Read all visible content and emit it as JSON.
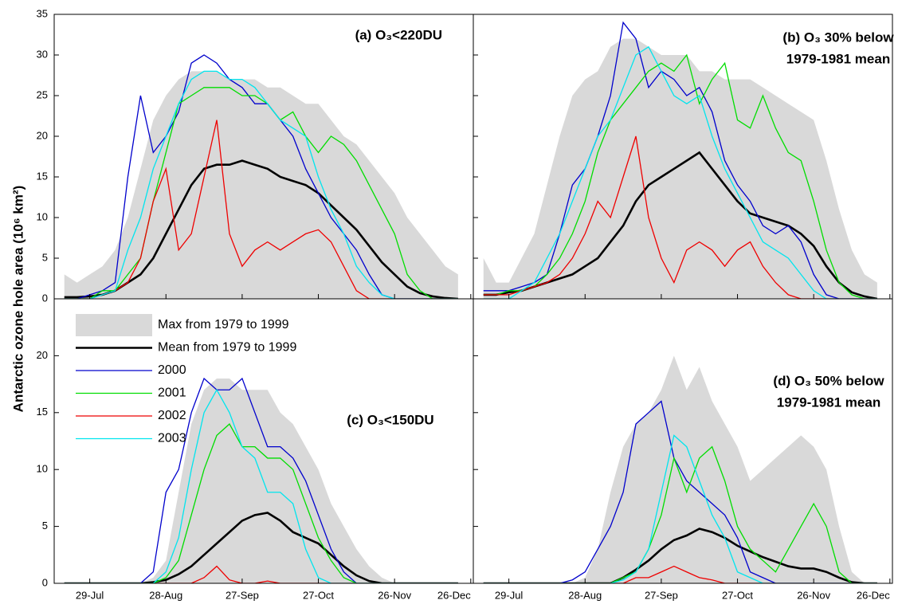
{
  "chart_data": {
    "type": "line",
    "y_label": "Antarctic ozone hole area (10⁶ km²)",
    "x": [
      200,
      205,
      210,
      215,
      220,
      225,
      230,
      235,
      240,
      245,
      250,
      255,
      260,
      265,
      270,
      275,
      280,
      285,
      290,
      295,
      300,
      305,
      310,
      315,
      320,
      325,
      330,
      335,
      340,
      345,
      350,
      355
    ],
    "xlim": [
      196,
      361
    ],
    "xticks": [
      {
        "value": 210,
        "label": "29-Jul"
      },
      {
        "value": 240,
        "label": "28-Aug"
      },
      {
        "value": 270,
        "label": "27-Sep"
      },
      {
        "value": 300,
        "label": "27-Oct"
      },
      {
        "value": 330,
        "label": "26-Nov"
      },
      {
        "value": 360,
        "label": "26-Dec"
      }
    ],
    "legend": {
      "position": "upper left",
      "panel": 2,
      "entries": [
        {
          "name": "Max from 1979 to 1999",
          "color": "#d9d9d9",
          "style": "area"
        },
        {
          "name": "Mean from 1979 to 1999",
          "color": "#000000",
          "style": "thick"
        },
        {
          "name": "2000",
          "color": "#0000cc",
          "style": "line"
        },
        {
          "name": "2001",
          "color": "#00dd00",
          "style": "line"
        },
        {
          "name": "2002",
          "color": "#ee0000",
          "style": "line"
        },
        {
          "name": "2003",
          "color": "#00e5ee",
          "style": "line"
        }
      ]
    },
    "panels": [
      {
        "title": [
          "(a) O₃<220DU"
        ],
        "ylim": [
          0,
          35
        ],
        "yticks": [
          0,
          5,
          10,
          15,
          20,
          25,
          30,
          35
        ],
        "series": [
          {
            "values": [
              3,
              2,
              3,
              4,
              6,
              10,
              16,
              22,
              25,
              27,
              28,
              28,
              28,
              27,
              27,
              27,
              26,
              26,
              25,
              24,
              24,
              22,
              20,
              19,
              17,
              15,
              13,
              10,
              8,
              6,
              4,
              3
            ]
          },
          {
            "values": [
              0.2,
              0.2,
              0.3,
              0.5,
              1,
              2,
              3,
              5,
              8,
              11,
              14,
              16,
              16.5,
              16.5,
              17,
              16.5,
              16,
              15,
              14.5,
              14,
              13,
              11.5,
              10,
              8.5,
              6.5,
              4.5,
              3,
              1.5,
              0.7,
              0.3,
              0.1,
              0
            ]
          },
          {
            "values": [
              0,
              0,
              0.5,
              1,
              2,
              15,
              25,
              18,
              20,
              23,
              29,
              30,
              29,
              27,
              26,
              24,
              24,
              22,
              20,
              16,
              13,
              10,
              8,
              6,
              3,
              0.5,
              0,
              0,
              0,
              0,
              0,
              0
            ]
          },
          {
            "values": [
              0,
              0,
              0,
              1,
              1,
              3,
              5,
              12,
              18,
              24,
              25,
              26,
              26,
              26,
              25,
              25,
              24,
              22,
              23,
              20,
              18,
              20,
              19,
              17,
              14,
              11,
              8,
              3,
              1,
              0,
              0,
              0
            ]
          },
          {
            "values": [
              0,
              0,
              0,
              0.5,
              1,
              2,
              5,
              12,
              16,
              6,
              8,
              15,
              22,
              8,
              4,
              6,
              7,
              6,
              7,
              8,
              8.5,
              7,
              4,
              1,
              0,
              0,
              0,
              0,
              0,
              0,
              0,
              0
            ]
          },
          {
            "values": [
              0,
              0,
              0,
              0.5,
              1,
              6,
              10,
              16,
              20,
              24,
              27,
              28,
              28,
              27,
              27,
              26,
              24,
              22,
              21,
              20,
              15,
              11,
              8,
              4,
              2,
              0.5,
              0,
              0,
              0,
              0,
              0,
              0
            ]
          }
        ]
      },
      {
        "title": [
          "(b) O₃ 30% below",
          "1979-1981 mean"
        ],
        "ylim": [
          0,
          35
        ],
        "yticks": [
          0,
          5,
          10,
          15,
          20,
          25,
          30,
          35
        ],
        "series": [
          {
            "values": [
              5,
              2,
              2,
              5,
              8,
              14,
              20,
              25,
              27,
              28,
              31,
              32,
              32,
              31,
              30,
              30,
              30,
              28,
              28,
              27,
              27,
              27,
              26,
              25,
              24,
              23,
              22,
              17,
              11,
              6,
              3,
              2
            ]
          },
          {
            "values": [
              0.5,
              0.5,
              0.8,
              1,
              1.5,
              2,
              2.5,
              3,
              4,
              5,
              7,
              9,
              12,
              14,
              15,
              16,
              17,
              18,
              16,
              14,
              12,
              10.5,
              10,
              9.5,
              9,
              8,
              6.5,
              4,
              2,
              0.8,
              0.3,
              0
            ]
          },
          {
            "values": [
              1,
              1,
              1,
              1.5,
              2,
              3,
              8,
              14,
              16,
              20,
              25,
              34,
              32,
              26,
              28,
              27,
              25,
              26,
              23,
              17,
              14,
              12,
              9,
              8,
              9,
              7,
              3,
              0.5,
              0,
              0,
              0,
              0
            ]
          },
          {
            "values": [
              0.5,
              0.5,
              1,
              1,
              1.5,
              3,
              5,
              8,
              12,
              18,
              22,
              24,
              26,
              28,
              29,
              28,
              30,
              24,
              27,
              29,
              22,
              21,
              25,
              21,
              18,
              17,
              12,
              6,
              2,
              0.5,
              0,
              0
            ]
          },
          {
            "values": [
              0.5,
              0.5,
              0.5,
              1,
              1.5,
              2,
              3,
              5,
              8,
              12,
              10,
              15,
              20,
              10,
              5,
              2,
              6,
              7,
              6,
              4,
              6,
              7,
              4,
              2,
              0.5,
              0,
              0,
              0,
              0,
              0,
              0,
              0
            ]
          },
          {
            "values": [
              0,
              0,
              0,
              1,
              2,
              5,
              8,
              12,
              16,
              20,
              22,
              26,
              30,
              31,
              28,
              25,
              24,
              25,
              20,
              16,
              13,
              10,
              7,
              6,
              5,
              3,
              1,
              0,
              0,
              0,
              0,
              0
            ]
          }
        ]
      },
      {
        "title": [
          "(c) O₃<150DU"
        ],
        "ylim": [
          0,
          25
        ],
        "yticks": [
          0,
          5,
          10,
          15,
          20
        ],
        "series": [
          {
            "values": [
              0,
              0,
              0,
              0,
              0,
              0,
              0,
              0.5,
              2,
              8,
              14,
              17,
              18,
              18,
              17,
              17,
              17,
              15,
              14,
              12,
              10,
              7,
              5,
              3,
              1.5,
              0.5,
              0,
              0,
              0,
              0,
              0,
              0
            ]
          },
          {
            "values": [
              0,
              0,
              0,
              0,
              0,
              0,
              0,
              0.1,
              0.3,
              0.8,
              1.5,
              2.5,
              3.5,
              4.5,
              5.5,
              6,
              6.2,
              5.5,
              4.5,
              4,
              3.5,
              2.5,
              1.5,
              0.7,
              0.2,
              0,
              0,
              0,
              0,
              0,
              0,
              0
            ]
          },
          {
            "values": [
              0,
              0,
              0,
              0,
              0,
              0,
              0,
              1,
              8,
              10,
              15,
              18,
              17,
              17,
              18,
              15,
              12,
              12,
              11,
              9,
              6,
              3,
              1,
              0,
              0,
              0,
              0,
              0,
              0,
              0,
              0,
              0
            ]
          },
          {
            "values": [
              0,
              0,
              0,
              0,
              0,
              0,
              0,
              0,
              0.5,
              2,
              6,
              10,
              13,
              14,
              12,
              12,
              11,
              11,
              10,
              7,
              4,
              2,
              0.5,
              0,
              0,
              0,
              0,
              0,
              0,
              0,
              0,
              0
            ]
          },
          {
            "values": [
              0,
              0,
              0,
              0,
              0,
              0,
              0,
              0,
              0,
              0,
              0,
              0.5,
              1.5,
              0.3,
              0,
              0,
              0.2,
              0,
              0,
              0,
              0,
              0,
              0,
              0,
              0,
              0,
              0,
              0,
              0,
              0,
              0,
              0
            ]
          },
          {
            "values": [
              0,
              0,
              0,
              0,
              0,
              0,
              0,
              0,
              1,
              4,
              10,
              15,
              17,
              15,
              12,
              11,
              8,
              8,
              7,
              3,
              0.5,
              0,
              0,
              0,
              0,
              0,
              0,
              0,
              0,
              0,
              0,
              0
            ]
          }
        ]
      },
      {
        "title": [
          "(d) O₃ 50% below",
          "1979-1981 mean"
        ],
        "ylim": [
          0,
          25
        ],
        "yticks": [
          0,
          5,
          10,
          15,
          20
        ],
        "series": [
          {
            "values": [
              0,
              0,
              0,
              0,
              0,
              0,
              0,
              0,
              0.5,
              3,
              8,
              12,
              14,
              15,
              17,
              20,
              17,
              19,
              16,
              14,
              12,
              9,
              10,
              11,
              12,
              13,
              12,
              10,
              5,
              1,
              0,
              0
            ]
          },
          {
            "values": [
              0,
              0,
              0,
              0,
              0,
              0,
              0,
              0,
              0,
              0,
              0,
              0.5,
              1.2,
              2,
              3,
              3.8,
              4.2,
              4.8,
              4.5,
              4,
              3.3,
              2.8,
              2.3,
              1.9,
              1.5,
              1.3,
              1.3,
              1,
              0.5,
              0.1,
              0,
              0
            ]
          },
          {
            "values": [
              0,
              0,
              0,
              0,
              0,
              0,
              0,
              0.3,
              1,
              3,
              5,
              8,
              14,
              15,
              16,
              11,
              9,
              8,
              7,
              6,
              4,
              1,
              0.5,
              0,
              0,
              0,
              0,
              0,
              0,
              0,
              0,
              0
            ]
          },
          {
            "values": [
              0,
              0,
              0,
              0,
              0,
              0,
              0,
              0,
              0,
              0,
              0,
              0.5,
              1,
              3,
              6,
              11,
              8,
              11,
              12,
              9,
              5,
              3,
              2,
              1,
              3,
              5,
              7,
              5,
              1,
              0,
              0,
              0
            ]
          },
          {
            "values": [
              0,
              0,
              0,
              0,
              0,
              0,
              0,
              0,
              0,
              0,
              0,
              0,
              0.5,
              0.5,
              1,
              1.5,
              1,
              0.5,
              0.3,
              0,
              0,
              0,
              0,
              0,
              0,
              0,
              0,
              0,
              0,
              0,
              0,
              0
            ]
          },
          {
            "values": [
              0,
              0,
              0,
              0,
              0,
              0,
              0,
              0,
              0,
              0,
              0,
              0.3,
              1,
              3,
              8,
              13,
              12,
              9,
              6,
              4,
              1,
              0.5,
              0,
              0,
              0,
              0,
              0,
              0,
              0,
              0,
              0,
              0
            ]
          }
        ]
      }
    ]
  }
}
